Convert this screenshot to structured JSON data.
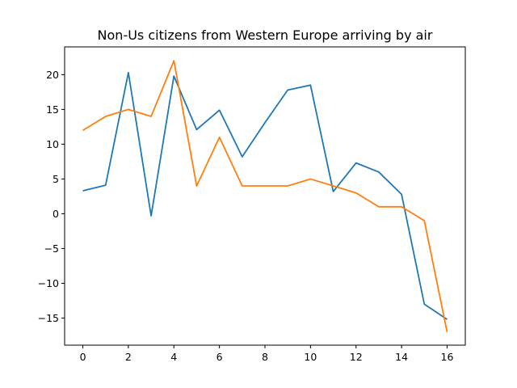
{
  "chart_data": {
    "type": "line",
    "title": "Non-Us citizens from Western Europe arriving by air",
    "xlabel": "",
    "ylabel": "",
    "x": [
      0,
      1,
      2,
      3,
      4,
      5,
      6,
      7,
      8,
      9,
      10,
      11,
      12,
      13,
      14,
      15,
      16
    ],
    "xlim": [
      -0.8,
      16.8
    ],
    "ylim": [
      -18.9,
      24.0
    ],
    "xticks": [
      0,
      2,
      4,
      6,
      8,
      10,
      12,
      14,
      16
    ],
    "yticks": [
      -15,
      -10,
      -5,
      0,
      5,
      10,
      15,
      20
    ],
    "xtick_labels": [
      "0",
      "2",
      "4",
      "6",
      "8",
      "10",
      "12",
      "14",
      "16"
    ],
    "ytick_labels": [
      "−15",
      "−10",
      "−5",
      "0",
      "5",
      "10",
      "15",
      "20"
    ],
    "grid": false,
    "series": [
      {
        "color": "#1f77b4",
        "values": [
          3.3,
          4.1,
          20.3,
          -0.3,
          19.8,
          12.1,
          14.9,
          8.2,
          13.1,
          17.8,
          18.5,
          3.2,
          7.3,
          6.0,
          2.8,
          -13.0,
          -15.2
        ]
      },
      {
        "color": "#ff7f0e",
        "values": [
          12.0,
          14.0,
          15.0,
          14.0,
          22.0,
          4.0,
          11.0,
          4.0,
          4.0,
          4.0,
          5.0,
          4.0,
          3.0,
          1.0,
          1.0,
          -1.0,
          -17.0
        ]
      }
    ]
  }
}
